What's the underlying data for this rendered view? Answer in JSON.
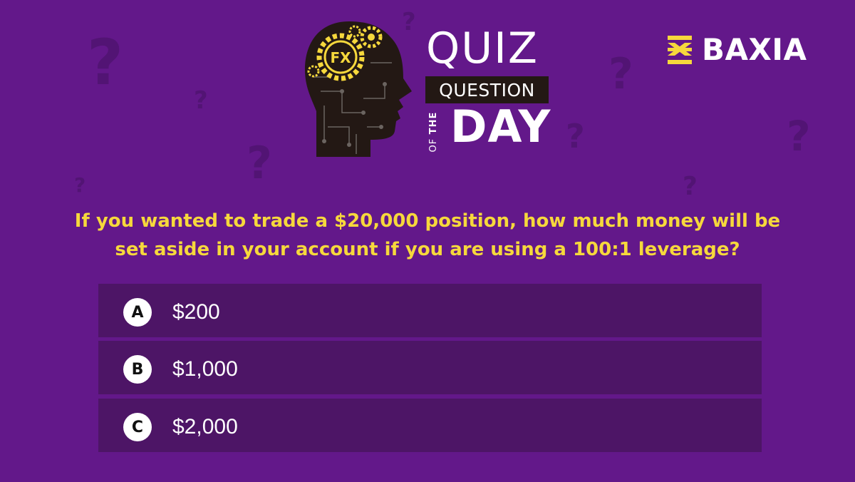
{
  "header": {
    "quiz_word": "QUIZ",
    "question_word": "QUESTION",
    "of_word": "OF",
    "the_word": "THE",
    "day_word": "DAY",
    "head_badge": "FX"
  },
  "brand": {
    "name": "BAXIA",
    "accent": "#f6d83c"
  },
  "question": "If you wanted to trade a $20,000 position, how much money will be set aside in your account if you are using a 100:1 leverage?",
  "options": [
    {
      "letter": "A",
      "text": "$200"
    },
    {
      "letter": "B",
      "text": "$1,000"
    },
    {
      "letter": "C",
      "text": "$2,000"
    }
  ],
  "colors": {
    "background": "#63188a",
    "option_background": "#4d1566",
    "question_text": "#f6d83c",
    "decor_qmark": "#521474"
  }
}
